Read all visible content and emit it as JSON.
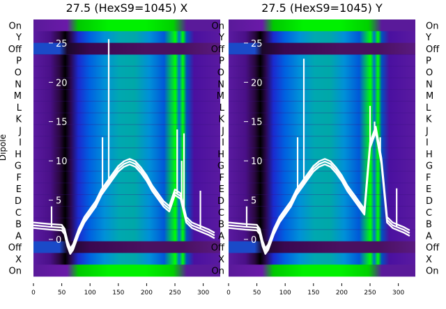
{
  "figure": {
    "ylabel": "Dipole"
  },
  "row_labels": [
    "On",
    "Y",
    "Off",
    "P",
    "O",
    "N",
    "M",
    "L",
    "K",
    "J",
    "I",
    "H",
    "G",
    "F",
    "E",
    "D",
    "C",
    "B",
    "A",
    "Off",
    "X",
    "On"
  ],
  "chart_data": [
    {
      "type": "heatmap",
      "title": "27.5 (HexS9=1045) X",
      "xlabel": "",
      "ylabel": "",
      "xlim": [
        0,
        330
      ],
      "x_ticks": [
        0,
        50,
        100,
        150,
        200,
        250,
        300
      ],
      "overlay_ylim": [
        -4.7,
        28
      ],
      "overlay_ticks": [
        "25",
        "20",
        "15",
        "10",
        "5",
        "0"
      ],
      "overlay_tick_values": [
        25,
        20,
        15,
        10,
        5,
        0
      ],
      "colormap": [
        "#000000",
        "#5a0070",
        "#7a00c0",
        "#0030ff",
        "#0090e0",
        "#00b090",
        "#00ff00"
      ],
      "overlay_series": {
        "color": "#ffffff",
        "x": [
          0,
          30,
          50,
          55,
          60,
          65,
          70,
          80,
          90,
          100,
          110,
          120,
          130,
          140,
          150,
          160,
          170,
          180,
          190,
          200,
          210,
          220,
          230,
          240,
          250,
          260,
          270,
          280,
          290,
          300,
          310,
          320
        ],
        "y": [
          1.8,
          1.6,
          1.5,
          1.0,
          -0.5,
          -1.5,
          -1.0,
          1.0,
          2.5,
          3.5,
          4.5,
          6.0,
          7.0,
          8.0,
          9.0,
          9.6,
          9.9,
          9.6,
          8.8,
          7.8,
          6.5,
          5.5,
          4.5,
          3.9,
          6.0,
          5.5,
          2.5,
          1.8,
          1.5,
          1.2,
          0.9,
          0.5
        ],
        "spikes": [
          {
            "x": 32,
            "y": 4.2
          },
          {
            "x": 122,
            "y": 13.0
          },
          {
            "x": 133,
            "y": 25.5
          },
          {
            "x": 254,
            "y": 14.0
          },
          {
            "x": 262,
            "y": 10.0
          },
          {
            "x": 266,
            "y": 13.5
          },
          {
            "x": 295,
            "y": 6.2
          }
        ]
      }
    },
    {
      "type": "heatmap",
      "title": "27.5 (HexS9=1045) Y",
      "xlabel": "",
      "ylabel": "",
      "xlim": [
        0,
        330
      ],
      "x_ticks": [
        0,
        50,
        100,
        150,
        200,
        250,
        300
      ],
      "overlay_ylim": [
        -4.7,
        28
      ],
      "overlay_ticks": [
        "25",
        "20",
        "15",
        "10",
        "5",
        "0"
      ],
      "overlay_tick_values": [
        25,
        20,
        15,
        10,
        5,
        0
      ],
      "colormap": [
        "#000000",
        "#5a0070",
        "#7a00c0",
        "#0030ff",
        "#0090e0",
        "#00b090",
        "#00ff00"
      ],
      "overlay_series": {
        "color": "#ffffff",
        "x": [
          0,
          30,
          50,
          55,
          60,
          65,
          70,
          80,
          90,
          100,
          110,
          120,
          130,
          140,
          150,
          160,
          170,
          180,
          190,
          200,
          210,
          220,
          230,
          240,
          250,
          260,
          270,
          280,
          290,
          300,
          310,
          320
        ],
        "y": [
          1.8,
          1.6,
          1.5,
          1.0,
          -0.5,
          -1.5,
          -1.0,
          1.0,
          2.5,
          3.5,
          4.5,
          6.0,
          7.0,
          8.0,
          9.0,
          9.6,
          9.9,
          9.6,
          8.8,
          7.8,
          6.5,
          5.5,
          4.5,
          3.5,
          12.0,
          14.0,
          10.0,
          2.5,
          1.8,
          1.5,
          1.2,
          0.8
        ],
        "spikes": [
          {
            "x": 32,
            "y": 4.2
          },
          {
            "x": 122,
            "y": 13.0
          },
          {
            "x": 133,
            "y": 23.0
          },
          {
            "x": 250,
            "y": 17.0
          },
          {
            "x": 258,
            "y": 15.0
          },
          {
            "x": 268,
            "y": 13.0
          },
          {
            "x": 297,
            "y": 6.5
          }
        ]
      }
    }
  ]
}
